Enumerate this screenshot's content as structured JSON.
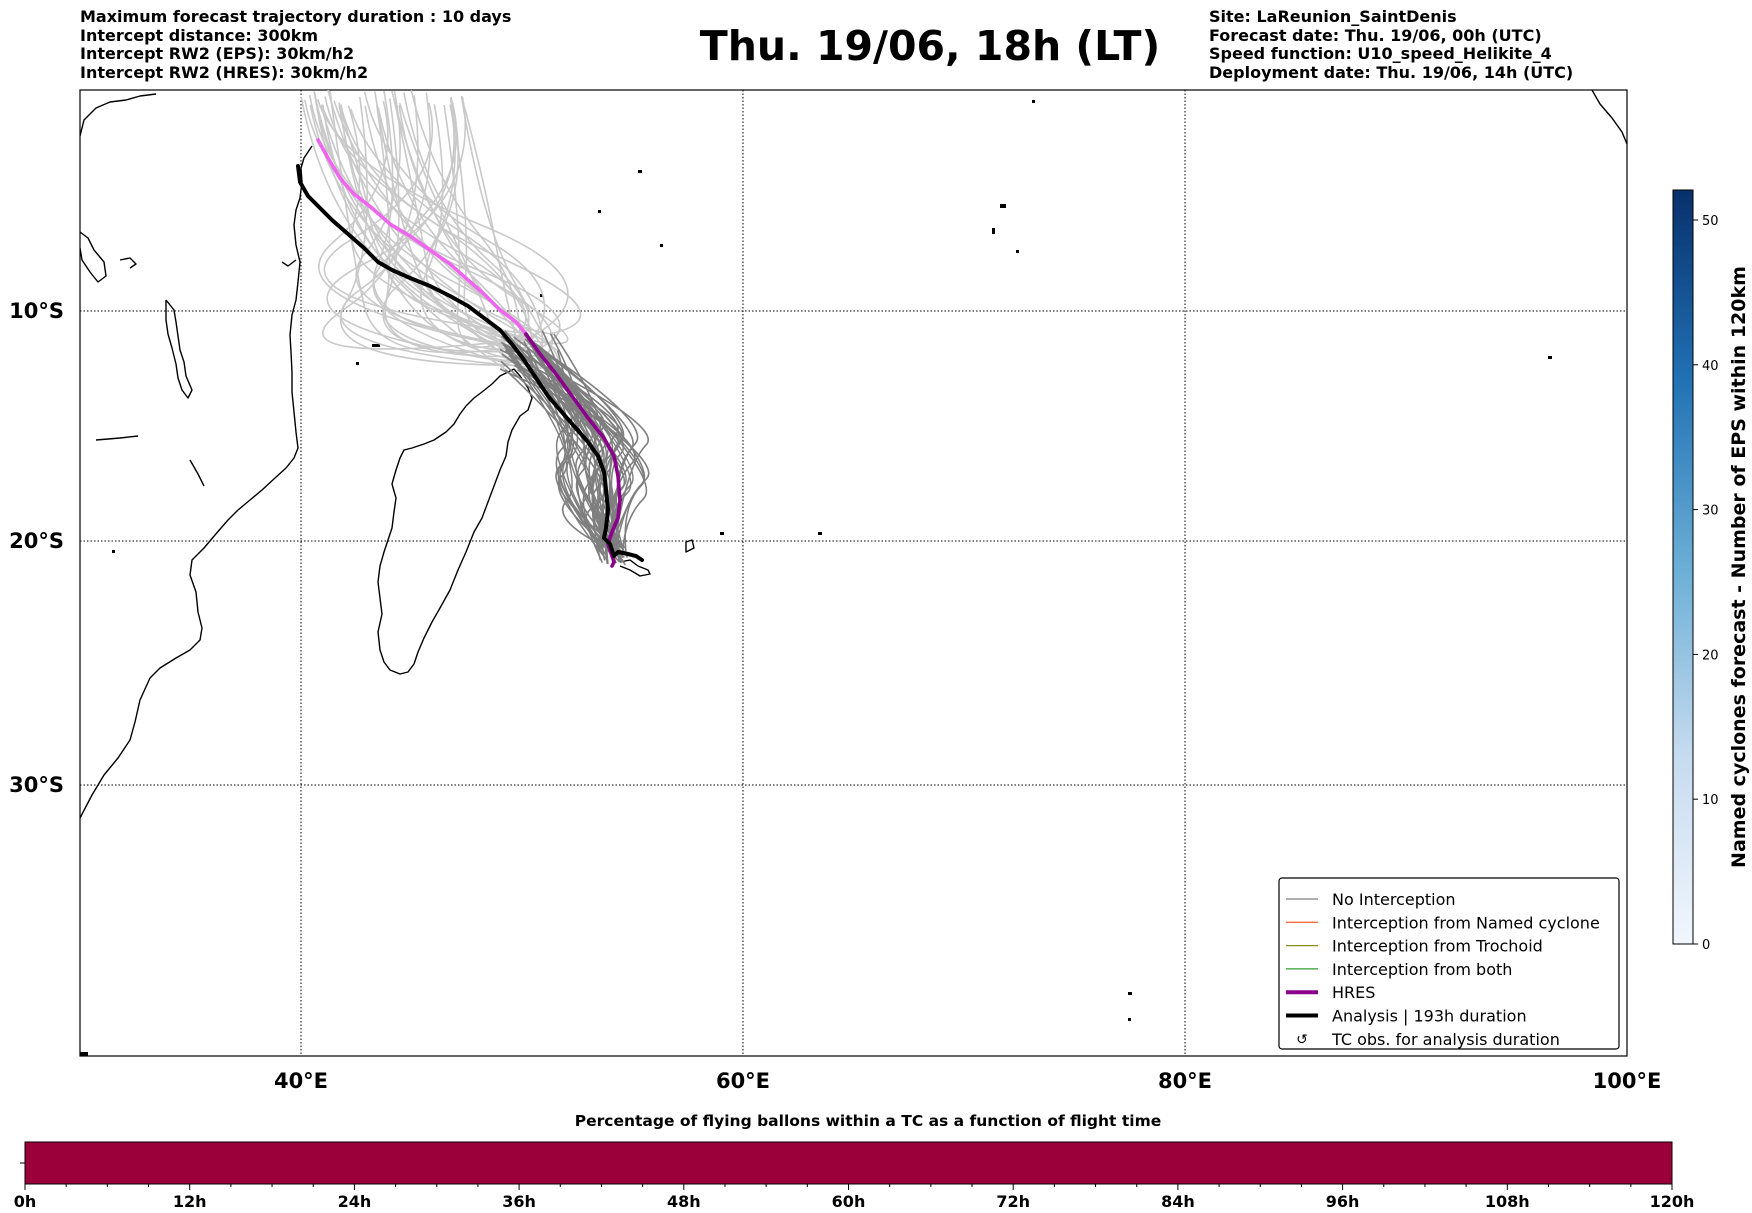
{
  "header": {
    "left_lines": [
      "Maximum forecast trajectory duration : 10 days",
      "Intercept distance: 300km",
      "Intercept RW2 (EPS):  30km/h2",
      "Intercept RW2 (HRES): 30km/h2"
    ],
    "title": "Thu. 19/06, 18h (LT)",
    "right_lines": [
      "Site: LaReunion_SaintDenis",
      "Forecast date: Thu. 19/06, 00h (UTC)",
      "Speed function: U10_speed_Helikite_4",
      "Deployment date: Thu. 19/06, 14h (UTC)"
    ]
  },
  "map": {
    "lon_labels": [
      "40°E",
      "60°E",
      "80°E",
      "100°E"
    ],
    "lat_labels": [
      "10°S",
      "20°S",
      "30°S"
    ],
    "colors": {
      "no_interception": "#7f7f7f",
      "named_cyclone": "#ff6a3d",
      "trochoid": "#8a8a1e",
      "both": "#2ca02c",
      "hres": "#8b008b",
      "hres_early": "#ee66ee",
      "analysis": "#000000"
    }
  },
  "legend": {
    "items": [
      {
        "label": "No Interception",
        "style": "thin",
        "color": "#7f7f7f"
      },
      {
        "label": "Interception from Named cyclone",
        "style": "thin",
        "color": "#ff6a3d"
      },
      {
        "label": "Interception from Trochoid",
        "style": "thin",
        "color": "#8a8a1e"
      },
      {
        "label": "Interception from both",
        "style": "thin",
        "color": "#2ca02c"
      },
      {
        "label": "HRES",
        "style": "thick",
        "color": "#8b008b"
      },
      {
        "label": "Analysis | 193h duration",
        "style": "thick",
        "color": "#000000"
      },
      {
        "label": "TC obs. for analysis duration",
        "style": "symbol",
        "color": "#000000"
      }
    ]
  },
  "colorbar_right": {
    "label": "Named cyclones forecast - Number of EPS within 120km",
    "ticks": [
      "0",
      "10",
      "20",
      "30",
      "40",
      "50"
    ]
  },
  "colorbar_bottom": {
    "title": "Percentage of flying ballons within a TC as a function of flight time",
    "ticks": [
      "0h",
      "12h",
      "24h",
      "36h",
      "48h",
      "60h",
      "72h",
      "84h",
      "96h",
      "108h",
      "120h"
    ],
    "fill_color": "#9b003a"
  }
}
